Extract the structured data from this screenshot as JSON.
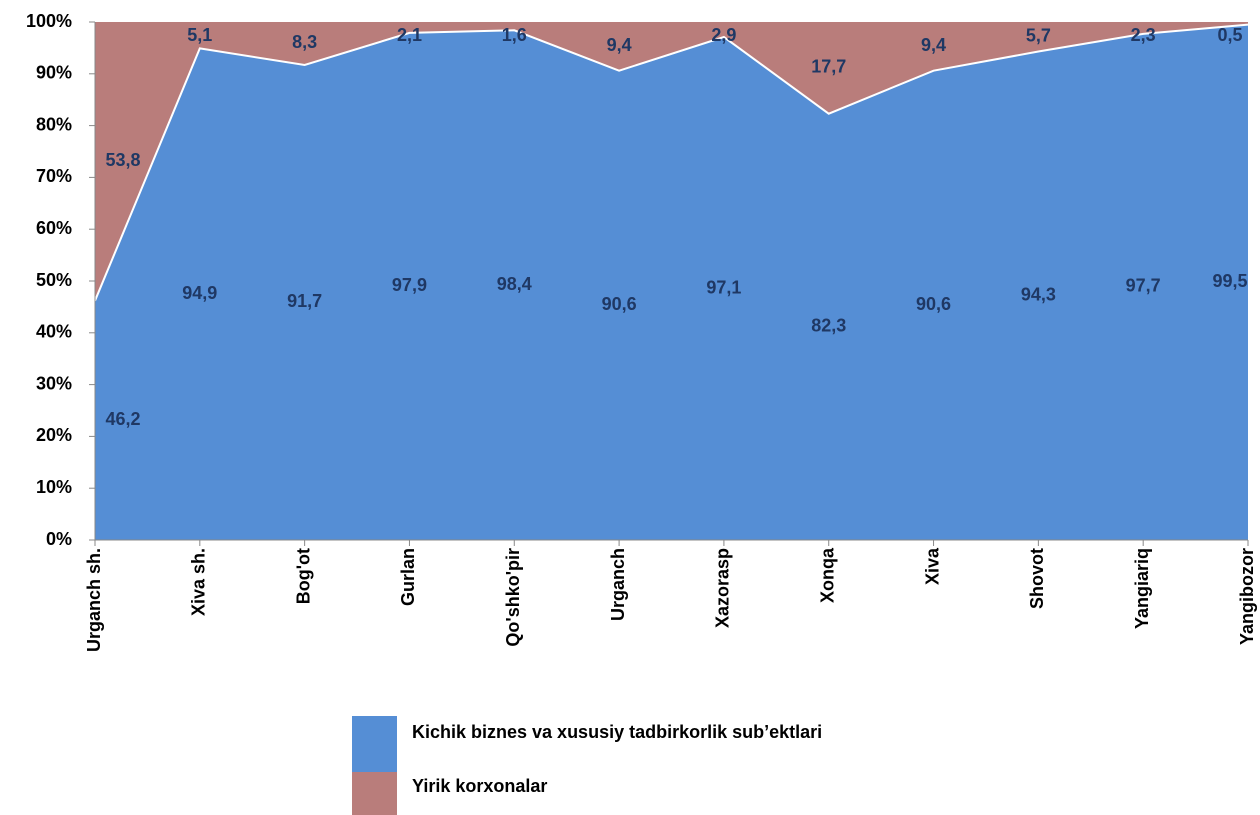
{
  "chart_data": {
    "type": "stacked_area",
    "categories": [
      "Urganch sh.",
      "Xiva sh.",
      "Bog'ot",
      "Gurlan",
      "Qo'shko'pir",
      "Urganch",
      "Xazorasp",
      "Xonqa",
      "Xiva",
      "Shovot",
      "Yangiariq",
      "Yangibozor"
    ],
    "series": [
      {
        "name": "Kichik biznes va xususiy tadbirkorlik sub’ektlari",
        "color": "#558ed5",
        "values": [
          46.2,
          94.9,
          91.7,
          97.9,
          98.4,
          90.6,
          97.1,
          82.3,
          90.6,
          94.3,
          97.7,
          99.5
        ],
        "value_labels": [
          "46,2",
          "94,9",
          "91,7",
          "97,9",
          "98,4",
          "90,6",
          "97,1",
          "82,3",
          "90,6",
          "94,3",
          "97,7",
          "99,5"
        ]
      },
      {
        "name": "Yirik korxonalar",
        "color": "#b97d7b",
        "values": [
          53.8,
          5.1,
          8.3,
          2.1,
          1.6,
          9.4,
          2.9,
          17.7,
          9.4,
          5.7,
          2.3,
          0.5
        ],
        "value_labels": [
          "53,8",
          "5,1",
          "8,3",
          "2,1",
          "1,6",
          "9,4",
          "2,9",
          "17,7",
          "9,4",
          "5,7",
          "2,3",
          "0,5"
        ]
      }
    ],
    "ylim": [
      0,
      100
    ],
    "yticks": [
      {
        "value": 0,
        "label": "0%"
      },
      {
        "value": 10,
        "label": "10%"
      },
      {
        "value": 20,
        "label": "20%"
      },
      {
        "value": 30,
        "label": "30%"
      },
      {
        "value": 40,
        "label": "40%"
      },
      {
        "value": 50,
        "label": "50%"
      },
      {
        "value": 60,
        "label": "60%"
      },
      {
        "value": 70,
        "label": "70%"
      },
      {
        "value": 80,
        "label": "80%"
      },
      {
        "value": 90,
        "label": "90%"
      },
      {
        "value": 100,
        "label": "100%"
      }
    ]
  }
}
